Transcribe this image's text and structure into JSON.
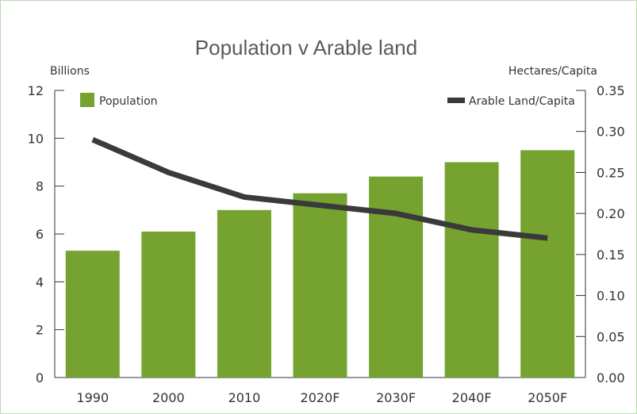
{
  "chart_data": {
    "type": "bar",
    "title": "Population v Arable land",
    "categories": [
      "1990",
      "2000",
      "2010",
      "2020F",
      "2030F",
      "2040F",
      "2050F"
    ],
    "series": [
      {
        "name": "Population",
        "type": "bar",
        "axis": "left",
        "color": "#76a32f",
        "values": [
          5.3,
          6.1,
          7.0,
          7.7,
          8.4,
          9.0,
          9.5
        ]
      },
      {
        "name": "Arable Land/Capita",
        "type": "line",
        "axis": "right",
        "color": "#3a3a3a",
        "values": [
          0.29,
          0.25,
          0.22,
          0.21,
          0.2,
          0.18,
          0.17
        ]
      }
    ],
    "left_axis": {
      "label": "Billions",
      "ylim": [
        0,
        12
      ],
      "ticks": [
        "0",
        "2",
        "4",
        "6",
        "8",
        "10",
        "12"
      ]
    },
    "right_axis": {
      "label": "Hectares/Capita",
      "ylim": [
        0,
        0.35
      ],
      "ticks": [
        "0.00",
        "0.05",
        "0.10",
        "0.15",
        "0.20",
        "0.25",
        "0.30",
        "0.35"
      ]
    },
    "legend": [
      "top-left",
      "top-right"
    ],
    "grid": false
  }
}
